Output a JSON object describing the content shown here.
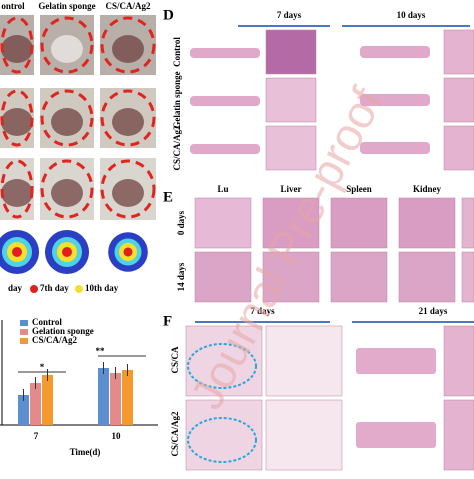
{
  "panel_a": {
    "columns": [
      "ontrol",
      "Gelatin sponge",
      "CS/CA/Ag2"
    ]
  },
  "heatmap_legend": [
    "day",
    "7th day",
    "10th day"
  ],
  "bar_chart": {
    "categories": [
      "7",
      "10"
    ],
    "xlabel": "Time(d)",
    "significance": [
      "*",
      "**"
    ],
    "series": [
      {
        "name": "Control",
        "color": "#5b8fd0",
        "values": [
          30,
          57
        ]
      },
      {
        "name": "Gelation sponge",
        "color": "#e58a8a",
        "values": [
          42,
          52
        ]
      },
      {
        "name": "CS/CA/Ag2",
        "color": "#f39a2e",
        "values": [
          50,
          55
        ]
      }
    ]
  },
  "panel_d": {
    "label": "D",
    "periods": [
      "7 days",
      "10 days"
    ],
    "rows": [
      "Control",
      "Gelatin sponge",
      "CS/CA/Ag2"
    ]
  },
  "panel_e": {
    "label": "E",
    "organs": [
      "Lu",
      "Liver",
      "Spleen",
      "Kidney"
    ],
    "rows": [
      "0 days",
      "14 days"
    ]
  },
  "panel_f": {
    "label": "F",
    "periods": [
      "7 days",
      "21 days"
    ],
    "rows": [
      "CS/CA",
      "CS/CA/Ag2"
    ]
  },
  "watermark": "Journal Pre-proof"
}
